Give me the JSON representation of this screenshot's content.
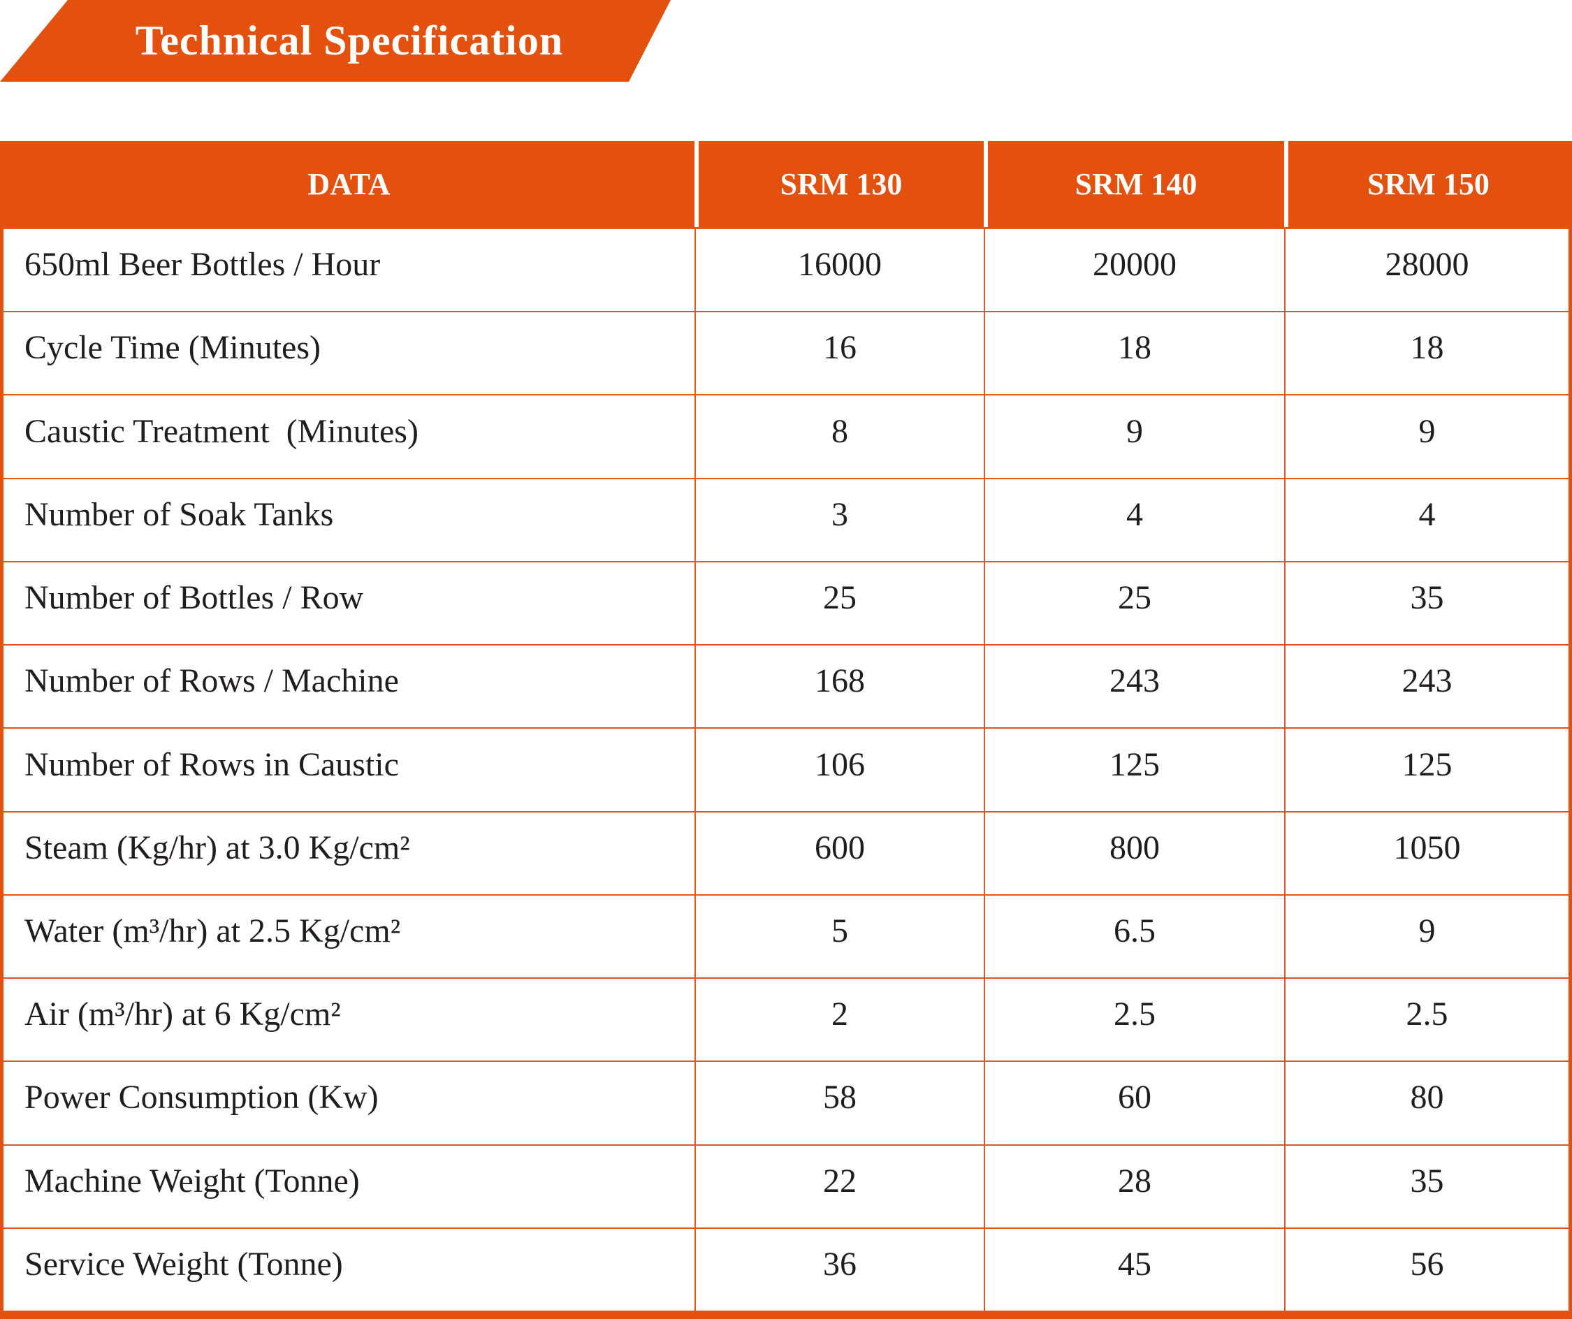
{
  "banner": {
    "title": "Technical Specification"
  },
  "table": {
    "columns": [
      "DATA",
      "SRM 130",
      "SRM 140",
      "SRM 150"
    ],
    "rows": [
      {
        "label": "650ml Beer Bottles / Hour",
        "values": [
          "16000",
          "20000",
          "28000"
        ]
      },
      {
        "label": "Cycle Time (Minutes)",
        "values": [
          "16",
          "18",
          "18"
        ]
      },
      {
        "label": "Caustic Treatment  (Minutes)",
        "values": [
          "8",
          "9",
          "9"
        ]
      },
      {
        "label": "Number of Soak Tanks",
        "values": [
          "3",
          "4",
          "4"
        ]
      },
      {
        "label": "Number of Bottles / Row",
        "values": [
          "25",
          "25",
          "35"
        ]
      },
      {
        "label": "Number of Rows / Machine",
        "values": [
          "168",
          "243",
          "243"
        ]
      },
      {
        "label": "Number of Rows in Caustic",
        "values": [
          "106",
          "125",
          "125"
        ]
      },
      {
        "label": "Steam (Kg/hr) at 3.0 Kg/cm²",
        "values": [
          "600",
          "800",
          "1050"
        ]
      },
      {
        "label": "Water (m³/hr) at 2.5 Kg/cm²",
        "values": [
          "5",
          "6.5",
          "9"
        ]
      },
      {
        "label": "Air (m³/hr) at 6 Kg/cm²",
        "values": [
          "2",
          "2.5",
          "2.5"
        ]
      },
      {
        "label": "Power Consumption (Kw)",
        "values": [
          "58",
          "60",
          "80"
        ]
      },
      {
        "label": "Machine Weight (Tonne)",
        "values": [
          "22",
          "28",
          "35"
        ]
      },
      {
        "label": "Service Weight (Tonne)",
        "values": [
          "36",
          "45",
          "56"
        ]
      }
    ]
  },
  "colors": {
    "accent": "#e4500e",
    "gridline": "#e4571a",
    "header_text": "#ffffff",
    "body_text": "#211d1d",
    "background": "#ffffff"
  }
}
